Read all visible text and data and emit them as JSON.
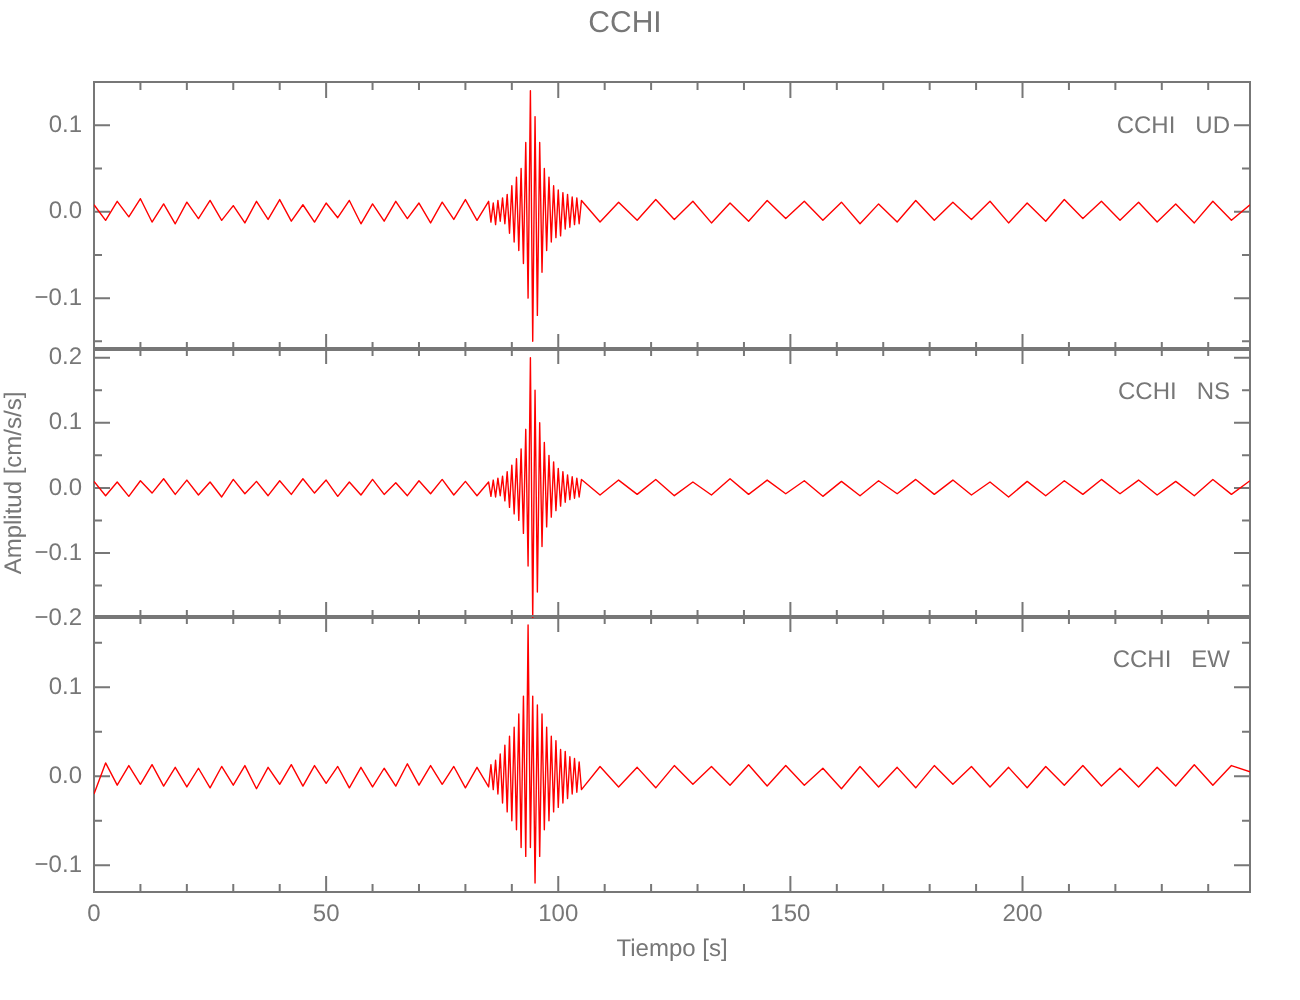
{
  "chart_data": [
    {
      "type": "line",
      "title": "CCHI",
      "annotations": [
        "CCHI   UD"
      ],
      "color": "#ff0000",
      "marker": "none",
      "grid": false,
      "tick_labels": "y",
      "xlim": [
        0,
        249
      ],
      "xticks": [
        0,
        {
          "value": 10,
          "label": null
        },
        {
          "value": 20,
          "label": null
        },
        {
          "value": 30,
          "label": null
        },
        {
          "value": 40,
          "label": null
        },
        50,
        {
          "value": 60,
          "label": null
        },
        {
          "value": 70,
          "label": null
        },
        {
          "value": 80,
          "label": null
        },
        {
          "value": 90,
          "label": null
        },
        100,
        {
          "value": 110,
          "label": null
        },
        {
          "value": 120,
          "label": null
        },
        {
          "value": 130,
          "label": null
        },
        {
          "value": 140,
          "label": null
        },
        150,
        {
          "value": 160,
          "label": null
        },
        {
          "value": 170,
          "label": null
        },
        {
          "value": 180,
          "label": null
        },
        {
          "value": 190,
          "label": null
        },
        200,
        {
          "value": 210,
          "label": null
        },
        {
          "value": 220,
          "label": null
        },
        {
          "value": 230,
          "label": null
        },
        {
          "value": 240,
          "label": null
        }
      ],
      "ylim": [
        -0.16,
        0.15
      ],
      "yticks": [
        {
          "value": -0.15,
          "label": null
        },
        {
          "value": -0.1,
          "label": "−0.1"
        },
        {
          "value": -0.05,
          "label": null
        },
        {
          "value": 0,
          "label": "0.0"
        },
        {
          "value": 0.05,
          "label": null
        },
        {
          "value": 0.1,
          "label": "0.1"
        }
      ],
      "x": [
        0,
        2.5,
        5,
        7.5,
        10,
        12.5,
        15,
        17.5,
        20,
        22.5,
        25,
        27.5,
        30,
        32.5,
        35,
        37.5,
        40,
        42.5,
        45,
        47.5,
        50,
        52.5,
        55,
        57.5,
        60,
        62.5,
        65,
        67.5,
        70,
        72.5,
        75,
        77.5,
        80,
        82.5,
        85,
        85.5,
        86,
        86.5,
        87,
        87.5,
        88,
        88.5,
        89,
        89.5,
        90,
        90.5,
        91,
        91.5,
        92,
        92.5,
        93,
        93.5,
        94,
        94.5,
        95,
        95.5,
        96,
        96.5,
        97,
        97.5,
        98,
        98.5,
        99,
        99.5,
        100,
        100.5,
        101,
        101.5,
        102,
        102.5,
        103,
        103.5,
        104,
        104.5,
        105,
        109,
        113,
        117,
        121,
        125,
        129,
        133,
        137,
        141,
        145,
        149,
        153,
        157,
        161,
        165,
        169,
        173,
        177,
        181,
        185,
        189,
        193,
        197,
        201,
        205,
        209,
        213,
        217,
        221,
        225,
        229,
        233,
        237,
        241,
        245,
        249
      ],
      "values": [
        0.008,
        -0.01,
        0.012,
        -0.006,
        0.015,
        -0.012,
        0.009,
        -0.014,
        0.011,
        -0.008,
        0.013,
        -0.01,
        0.007,
        -0.013,
        0.012,
        -0.009,
        0.014,
        -0.011,
        0.008,
        -0.012,
        0.01,
        -0.007,
        0.013,
        -0.014,
        0.009,
        -0.011,
        0.012,
        -0.008,
        0.01,
        -0.013,
        0.011,
        -0.009,
        0.014,
        -0.01,
        0.012,
        -0.012,
        0.01,
        -0.015,
        0.013,
        -0.011,
        0.016,
        -0.014,
        0.02,
        -0.025,
        0.03,
        -0.035,
        0.04,
        -0.045,
        0.05,
        -0.06,
        0.08,
        -0.1,
        0.14,
        -0.15,
        0.11,
        -0.12,
        0.08,
        -0.07,
        0.05,
        -0.045,
        0.04,
        -0.035,
        0.03,
        -0.03,
        0.025,
        -0.028,
        0.022,
        -0.02,
        0.02,
        -0.018,
        0.017,
        -0.015,
        0.016,
        -0.014,
        0.013,
        -0.012,
        0.011,
        -0.01,
        0.014,
        -0.009,
        0.012,
        -0.013,
        0.01,
        -0.011,
        0.013,
        -0.008,
        0.012,
        -0.01,
        0.011,
        -0.014,
        0.009,
        -0.012,
        0.013,
        -0.01,
        0.011,
        -0.009,
        0.012,
        -0.013,
        0.01,
        -0.011,
        0.014,
        -0.008,
        0.012,
        -0.01,
        0.011,
        -0.012,
        0.009,
        -0.013,
        0.012,
        -0.01,
        0.008
      ]
    },
    {
      "type": "line",
      "ylabel": "Amplitud [cm/s/s]",
      "annotations": [
        "CCHI   NS"
      ],
      "color": "#ff0000",
      "marker": "none",
      "grid": false,
      "tick_labels": "y",
      "xlim": [
        0,
        249
      ],
      "xticks": [
        0,
        {
          "value": 10,
          "label": null
        },
        {
          "value": 20,
          "label": null
        },
        {
          "value": 30,
          "label": null
        },
        {
          "value": 40,
          "label": null
        },
        50,
        {
          "value": 60,
          "label": null
        },
        {
          "value": 70,
          "label": null
        },
        {
          "value": 80,
          "label": null
        },
        {
          "value": 90,
          "label": null
        },
        100,
        {
          "value": 110,
          "label": null
        },
        {
          "value": 120,
          "label": null
        },
        {
          "value": 130,
          "label": null
        },
        {
          "value": 140,
          "label": null
        },
        150,
        {
          "value": 160,
          "label": null
        },
        {
          "value": 170,
          "label": null
        },
        {
          "value": 180,
          "label": null
        },
        {
          "value": 190,
          "label": null
        },
        200,
        {
          "value": 210,
          "label": null
        },
        {
          "value": 220,
          "label": null
        },
        {
          "value": 230,
          "label": null
        },
        {
          "value": 240,
          "label": null
        }
      ],
      "ylim": [
        -0.2,
        0.215
      ],
      "yticks": [
        {
          "value": -0.2,
          "label": "−0.2"
        },
        {
          "value": -0.15,
          "label": null
        },
        {
          "value": -0.1,
          "label": "−0.1"
        },
        {
          "value": -0.05,
          "label": null
        },
        {
          "value": 0,
          "label": "0.0"
        },
        {
          "value": 0.05,
          "label": null
        },
        {
          "value": 0.1,
          "label": "0.1"
        },
        {
          "value": 0.15,
          "label": null
        },
        {
          "value": 0.2,
          "label": "0.2"
        }
      ],
      "x": [
        0,
        2.5,
        5,
        7.5,
        10,
        12.5,
        15,
        17.5,
        20,
        22.5,
        25,
        27.5,
        30,
        32.5,
        35,
        37.5,
        40,
        42.5,
        45,
        47.5,
        50,
        52.5,
        55,
        57.5,
        60,
        62.5,
        65,
        67.5,
        70,
        72.5,
        75,
        77.5,
        80,
        82.5,
        85,
        85.5,
        86,
        86.5,
        87,
        87.5,
        88,
        88.5,
        89,
        89.5,
        90,
        90.5,
        91,
        91.5,
        92,
        92.5,
        93,
        93.5,
        94,
        94.5,
        95,
        95.5,
        96,
        96.5,
        97,
        97.5,
        98,
        98.5,
        99,
        99.5,
        100,
        100.5,
        101,
        101.5,
        102,
        102.5,
        103,
        103.5,
        104,
        104.5,
        105,
        109,
        113,
        117,
        121,
        125,
        129,
        133,
        137,
        141,
        145,
        149,
        153,
        157,
        161,
        165,
        169,
        173,
        177,
        181,
        185,
        189,
        193,
        197,
        201,
        205,
        209,
        213,
        217,
        221,
        225,
        229,
        233,
        237,
        241,
        245,
        249
      ],
      "values": [
        0.01,
        -0.012,
        0.009,
        -0.013,
        0.011,
        -0.008,
        0.014,
        -0.01,
        0.012,
        -0.011,
        0.009,
        -0.014,
        0.013,
        -0.009,
        0.01,
        -0.012,
        0.011,
        -0.01,
        0.014,
        -0.008,
        0.012,
        -0.013,
        0.009,
        -0.011,
        0.013,
        -0.01,
        0.008,
        -0.012,
        0.011,
        -0.009,
        0.013,
        -0.011,
        0.01,
        -0.012,
        0.009,
        -0.013,
        0.012,
        -0.014,
        0.015,
        -0.012,
        0.018,
        -0.02,
        0.025,
        -0.03,
        0.035,
        -0.04,
        0.045,
        -0.05,
        0.06,
        -0.07,
        0.09,
        -0.12,
        0.2,
        -0.2,
        0.15,
        -0.16,
        0.1,
        -0.09,
        0.07,
        -0.06,
        0.05,
        -0.045,
        0.04,
        -0.035,
        0.03,
        -0.028,
        0.025,
        -0.022,
        0.02,
        -0.018,
        0.017,
        -0.016,
        0.015,
        -0.014,
        0.013,
        -0.011,
        0.012,
        -0.01,
        0.013,
        -0.012,
        0.009,
        -0.011,
        0.014,
        -0.01,
        0.012,
        -0.009,
        0.011,
        -0.013,
        0.01,
        -0.012,
        0.011,
        -0.009,
        0.013,
        -0.01,
        0.012,
        -0.011,
        0.009,
        -0.014,
        0.01,
        -0.012,
        0.011,
        -0.01,
        0.013,
        -0.009,
        0.012,
        -0.011,
        0.01,
        -0.012,
        0.013,
        -0.01,
        0.011
      ]
    },
    {
      "type": "line",
      "xlabel": "Tiempo [s]",
      "annotations": [
        "CCHI   EW"
      ],
      "color": "#ff0000",
      "marker": "none",
      "grid": false,
      "xlim": [
        0,
        249
      ],
      "xticks": [
        0,
        {
          "value": 10,
          "label": null
        },
        {
          "value": 20,
          "label": null
        },
        {
          "value": 30,
          "label": null
        },
        {
          "value": 40,
          "label": null
        },
        50,
        {
          "value": 60,
          "label": null
        },
        {
          "value": 70,
          "label": null
        },
        {
          "value": 80,
          "label": null
        },
        {
          "value": 90,
          "label": null
        },
        100,
        {
          "value": 110,
          "label": null
        },
        {
          "value": 120,
          "label": null
        },
        {
          "value": 130,
          "label": null
        },
        {
          "value": 140,
          "label": null
        },
        150,
        {
          "value": 160,
          "label": null
        },
        {
          "value": 170,
          "label": null
        },
        {
          "value": 180,
          "label": null
        },
        {
          "value": 190,
          "label": null
        },
        200,
        {
          "value": 210,
          "label": null
        },
        {
          "value": 220,
          "label": null
        },
        {
          "value": 230,
          "label": null
        },
        {
          "value": 240,
          "label": null
        }
      ],
      "ylim": [
        -0.13,
        0.18
      ],
      "yticks": [
        {
          "value": -0.1,
          "label": "−0.1"
        },
        {
          "value": -0.05,
          "label": null
        },
        {
          "value": 0,
          "label": "0.0"
        },
        {
          "value": 0.05,
          "label": null
        },
        {
          "value": 0.1,
          "label": "0.1"
        },
        {
          "value": 0.15,
          "label": null
        }
      ],
      "x": [
        0,
        2.5,
        5,
        7.5,
        10,
        12.5,
        15,
        17.5,
        20,
        22.5,
        25,
        27.5,
        30,
        32.5,
        35,
        37.5,
        40,
        42.5,
        45,
        47.5,
        50,
        52.5,
        55,
        57.5,
        60,
        62.5,
        65,
        67.5,
        70,
        72.5,
        75,
        77.5,
        80,
        82.5,
        85,
        85.5,
        86,
        86.5,
        87,
        87.5,
        88,
        88.5,
        89,
        89.5,
        90,
        90.5,
        91,
        91.5,
        92,
        92.5,
        93,
        93.5,
        94,
        94.5,
        95,
        95.5,
        96,
        96.5,
        97,
        97.5,
        98,
        98.5,
        99,
        99.5,
        100,
        100.5,
        101,
        101.5,
        102,
        102.5,
        103,
        103.5,
        104,
        104.5,
        105,
        109,
        113,
        117,
        121,
        125,
        129,
        133,
        137,
        141,
        145,
        149,
        153,
        157,
        161,
        165,
        169,
        173,
        177,
        181,
        185,
        189,
        193,
        197,
        201,
        205,
        209,
        213,
        217,
        221,
        225,
        229,
        233,
        237,
        241,
        245,
        249
      ],
      "values": [
        -0.02,
        0.015,
        -0.01,
        0.012,
        -0.009,
        0.013,
        -0.011,
        0.01,
        -0.012,
        0.009,
        -0.013,
        0.011,
        -0.01,
        0.012,
        -0.014,
        0.01,
        -0.009,
        0.013,
        -0.011,
        0.012,
        -0.008,
        0.011,
        -0.013,
        0.01,
        -0.012,
        0.009,
        -0.011,
        0.014,
        -0.01,
        0.012,
        -0.009,
        0.011,
        -0.013,
        0.01,
        -0.012,
        0.013,
        -0.015,
        0.018,
        -0.02,
        0.025,
        -0.03,
        0.035,
        -0.04,
        0.045,
        -0.05,
        0.055,
        -0.06,
        0.07,
        -0.08,
        0.09,
        -0.09,
        0.17,
        -0.08,
        0.09,
        -0.12,
        0.08,
        -0.09,
        0.07,
        -0.06,
        0.055,
        -0.05,
        0.045,
        -0.04,
        0.04,
        -0.035,
        0.03,
        -0.03,
        0.028,
        -0.025,
        0.022,
        -0.02,
        0.02,
        -0.018,
        0.016,
        -0.015,
        0.011,
        -0.012,
        0.01,
        -0.013,
        0.012,
        -0.009,
        0.011,
        -0.01,
        0.013,
        -0.011,
        0.012,
        -0.01,
        0.009,
        -0.014,
        0.011,
        -0.012,
        0.01,
        -0.013,
        0.012,
        -0.009,
        0.011,
        -0.012,
        0.01,
        -0.013,
        0.011,
        -0.01,
        0.012,
        -0.011,
        0.009,
        -0.012,
        0.01,
        -0.011,
        0.013,
        -0.01,
        0.012,
        0.005
      ]
    }
  ]
}
